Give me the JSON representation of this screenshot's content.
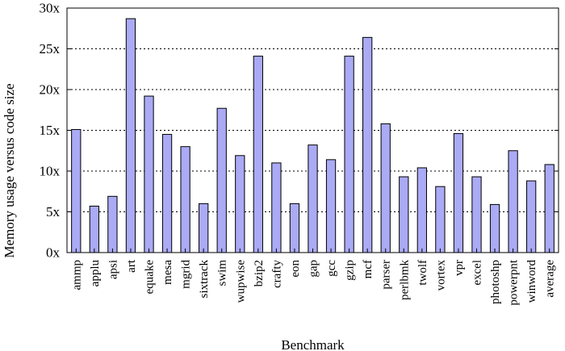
{
  "chart_data": {
    "type": "bar",
    "xlabel": "Benchmark",
    "ylabel": "Memory usage versus code size",
    "ylim": [
      0,
      30
    ],
    "yticks": [
      0,
      5,
      10,
      15,
      20,
      25,
      30
    ],
    "ytick_suffix": "x",
    "grid": "horizontal-dashed",
    "bar_color": "#aaaaf5",
    "bar_edge_color": "#000000",
    "categories": [
      "ammp",
      "applu",
      "apsi",
      "art",
      "equake",
      "mesa",
      "mgrid",
      "sixtrack",
      "swim",
      "wupwise",
      "bzip2",
      "crafty",
      "eon",
      "gap",
      "gcc",
      "gzip",
      "mcf",
      "parser",
      "perlbmk",
      "twolf",
      "vortex",
      "vpr",
      "excel",
      "photoshp",
      "powerpnt",
      "winword",
      "average"
    ],
    "values": [
      15.1,
      5.7,
      6.9,
      28.7,
      19.2,
      14.5,
      13.0,
      6.0,
      17.7,
      11.9,
      24.1,
      11.0,
      6.0,
      13.2,
      11.4,
      24.1,
      26.4,
      15.8,
      9.3,
      10.4,
      8.1,
      14.6,
      9.3,
      5.9,
      12.5,
      8.8,
      10.8
    ]
  }
}
